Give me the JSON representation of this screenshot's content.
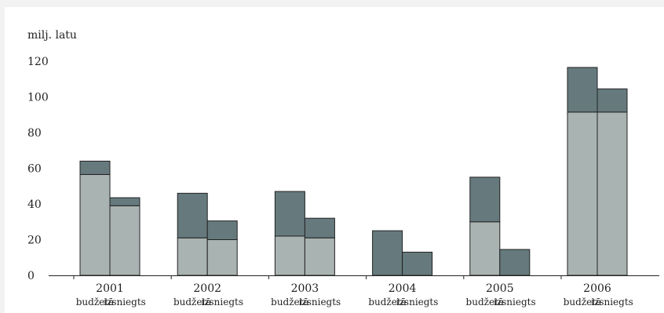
{
  "chart_data": {
    "type": "bar",
    "stacked": true,
    "ylabel": "milj. latu",
    "ylim": [
      0,
      120
    ],
    "yticks": [
      "0",
      "20",
      "40",
      "60",
      "80",
      "100",
      "120"
    ],
    "grid": false,
    "categories": [
      "2001",
      "2002",
      "2003",
      "2004",
      "2005",
      "2006"
    ],
    "bar_labels": [
      "budžetā",
      "izsniegts"
    ],
    "colors": {
      "lower": "#a9b3b1",
      "upper": "#667a7d",
      "stroke": "#222222"
    },
    "groups": [
      {
        "year": "2001",
        "bars": [
          {
            "label": "budžetā",
            "lower": 56.5,
            "total": 64
          },
          {
            "label": "izsniegts",
            "lower": 39,
            "total": 43.5
          }
        ]
      },
      {
        "year": "2002",
        "bars": [
          {
            "label": "budžetā",
            "lower": 21,
            "total": 46
          },
          {
            "label": "izsniegts",
            "lower": 20,
            "total": 30.5
          }
        ]
      },
      {
        "year": "2003",
        "bars": [
          {
            "label": "budžetā",
            "lower": 22,
            "total": 47
          },
          {
            "label": "izsniegts",
            "lower": 21,
            "total": 32
          }
        ]
      },
      {
        "year": "2004",
        "bars": [
          {
            "label": "budžetā",
            "lower": 0,
            "total": 25
          },
          {
            "label": "izsniegts",
            "lower": 0,
            "total": 13
          }
        ]
      },
      {
        "year": "2005",
        "bars": [
          {
            "label": "budžetā",
            "lower": 30,
            "total": 55
          },
          {
            "label": "izsniegts",
            "lower": 0,
            "total": 14.5
          }
        ]
      },
      {
        "year": "2006",
        "bars": [
          {
            "label": "budžetā",
            "lower": 91.5,
            "total": 116.5
          },
          {
            "label": "izsniegts",
            "lower": 91.5,
            "total": 104.5
          }
        ]
      }
    ]
  }
}
